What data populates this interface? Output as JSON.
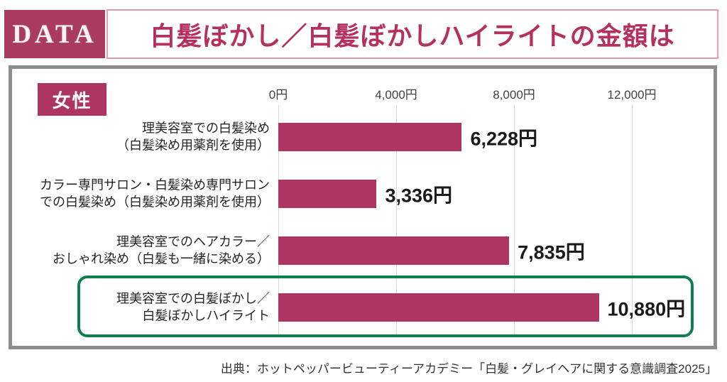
{
  "header": {
    "badge": "DATA",
    "title": "白髪ぼかし／白髪ぼかしハイライトの金額は"
  },
  "group_label": "女性",
  "chart_data": {
    "type": "bar",
    "orientation": "horizontal",
    "title": "白髪ぼかし／白髪ぼかしハイライトの金額は（女性）",
    "categories": [
      [
        "理美容室での白髪染め",
        "（白髪染め用薬剤を使用）"
      ],
      [
        "カラー専門サロン・白髪染め専門サロン",
        "での白髪染め（白髪染め用薬剤を使用）"
      ],
      [
        "理美容室でのヘアカラー／",
        "おしゃれ染め（白髪も一緒に染める）"
      ],
      [
        "理美容室での白髪ぼかし／",
        "白髪ぼかしハイライト"
      ]
    ],
    "values": [
      6228,
      3336,
      7835,
      10880
    ],
    "value_labels": [
      "6,228円",
      "3,336円",
      "7,835円",
      "10,880円"
    ],
    "axis_ticks": [
      "0円",
      "4,000円",
      "8,000円",
      "12,000円"
    ],
    "axis_tick_values": [
      0,
      4000,
      8000,
      12000
    ],
    "xlim": [
      0,
      12000
    ],
    "grid": true,
    "highlighted_index": 3,
    "colors": {
      "bar": "#AE3461",
      "accent_crimson": "#B5305E",
      "highlight_border_green": "#0E8050",
      "panel_border_gray": "#8C8C8C"
    }
  },
  "source": "出典：ホットペッパービューティーアカデミー「白髪・グレイヘアに関する意識調査2025」"
}
